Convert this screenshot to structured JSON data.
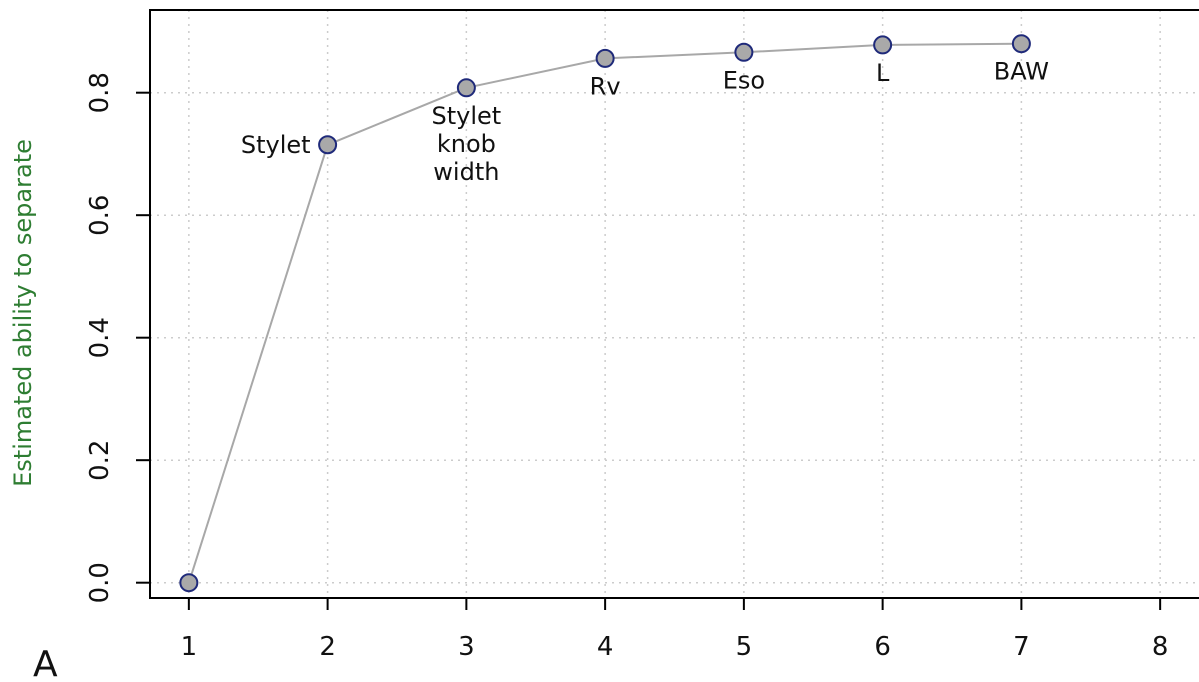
{
  "chart_data": {
    "type": "line",
    "title": "",
    "xlabel": "",
    "ylabel": "Estimated ability to separate",
    "panel_label": "A",
    "x": [
      1,
      2,
      3,
      4,
      5,
      6,
      7
    ],
    "values": [
      0.0,
      0.715,
      0.808,
      0.856,
      0.866,
      0.878,
      0.88
    ],
    "xlim": [
      0.72,
      8.28
    ],
    "ylim": [
      -0.025,
      0.935
    ],
    "xticks": [
      1,
      2,
      3,
      4,
      5,
      6,
      7,
      8
    ],
    "yticks": [
      "0.0",
      "0.2",
      "0.4",
      "0.6",
      "0.8"
    ],
    "grid": true,
    "annotations": [
      {
        "x": 2,
        "lines": [
          "Stylet"
        ],
        "placement": "left"
      },
      {
        "x": 3,
        "lines": [
          "Stylet",
          "knob",
          "width"
        ],
        "placement": "below"
      },
      {
        "x": 4,
        "lines": [
          "Rv"
        ],
        "placement": "below"
      },
      {
        "x": 5,
        "lines": [
          "Eso"
        ],
        "placement": "below"
      },
      {
        "x": 6,
        "lines": [
          "L"
        ],
        "placement": "below"
      },
      {
        "x": 7,
        "lines": [
          "BAW"
        ],
        "placement": "below"
      }
    ],
    "colors": {
      "line": "#a8a8a8",
      "marker_fill": "#a9a9a9",
      "marker_stroke": "#1f2a7a",
      "grid": "#cccccc",
      "axis": "#000000",
      "ylabel": "#2e7d32"
    }
  }
}
